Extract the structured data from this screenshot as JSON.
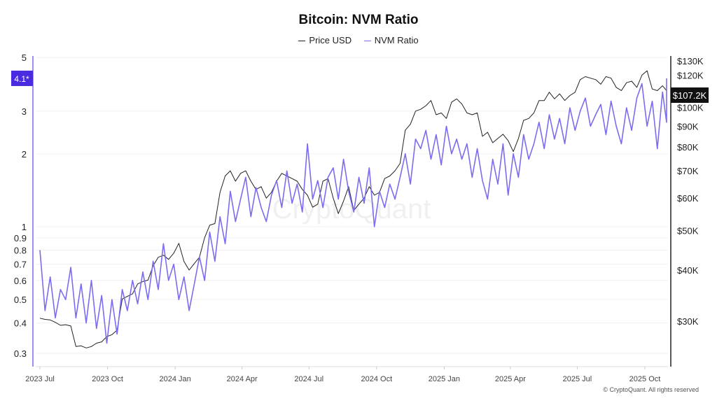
{
  "chart_data": {
    "type": "line",
    "title": "Bitcoin: NVM Ratio",
    "legend": [
      {
        "name": "Price USD",
        "color": "#222222"
      },
      {
        "name": "NVM Ratio",
        "color": "#7B6CF0"
      }
    ],
    "legend_position": "top-center",
    "x_start": "2023-07-01",
    "interval_days": 7,
    "x_ticks": [
      {
        "label": "2023 Jul",
        "date": "2023-07-01"
      },
      {
        "label": "2023 Oct",
        "date": "2023-10-01"
      },
      {
        "label": "2024 Jan",
        "date": "2024-01-01"
      },
      {
        "label": "2024 Apr",
        "date": "2024-04-01"
      },
      {
        "label": "2024 Jul",
        "date": "2024-07-01"
      },
      {
        "label": "2024 Oct",
        "date": "2024-10-01"
      },
      {
        "label": "2025 Jan",
        "date": "2025-01-01"
      },
      {
        "label": "2025 Apr",
        "date": "2025-04-01"
      },
      {
        "label": "2025 Jul",
        "date": "2025-07-01"
      },
      {
        "label": "2025 Oct",
        "date": "2025-10-01"
      }
    ],
    "left_axis": {
      "scale": "log",
      "range": [
        0.27,
        5
      ],
      "ticks": [
        {
          "v": 5,
          "label": "5"
        },
        {
          "v": 3,
          "label": "3"
        },
        {
          "v": 2,
          "label": "2"
        },
        {
          "v": 1,
          "label": "1"
        },
        {
          "v": 0.9,
          "label": "0.9"
        },
        {
          "v": 0.8,
          "label": "0.8"
        },
        {
          "v": 0.7,
          "label": "0.7"
        },
        {
          "v": 0.6,
          "label": "0.6"
        },
        {
          "v": 0.5,
          "label": "0.5"
        },
        {
          "v": 0.4,
          "label": "0.4"
        },
        {
          "v": 0.3,
          "label": "0.3"
        }
      ]
    },
    "right_axis": {
      "scale": "log",
      "range": [
        24000,
        130000
      ],
      "ticks": [
        {
          "v": 130000,
          "label": "$130K"
        },
        {
          "v": 120000,
          "label": "$120K"
        },
        {
          "v": 100000,
          "label": "$100K"
        },
        {
          "v": 90000,
          "label": "$90K"
        },
        {
          "v": 80000,
          "label": "$80K"
        },
        {
          "v": 70000,
          "label": "$70K"
        },
        {
          "v": 60000,
          "label": "$60K"
        },
        {
          "v": 50000,
          "label": "$50K"
        },
        {
          "v": 40000,
          "label": "$40K"
        },
        {
          "v": 30000,
          "label": "$30K"
        }
      ]
    },
    "last_ratio_label": "4.1*",
    "last_ratio_value": 4.1,
    "last_price_label": "$107.2K",
    "last_price_value": 107200,
    "series": [
      {
        "name": "Price USD",
        "axis": "right",
        "unit_multiplier": 1000,
        "values": [
          30.5,
          30.3,
          30.2,
          29.8,
          29.3,
          29.4,
          29.2,
          26.0,
          26.1,
          25.8,
          26.0,
          26.5,
          26.7,
          27.5,
          27.8,
          28.5,
          34.0,
          34.5,
          35.0,
          37.0,
          37.5,
          37.8,
          41.0,
          43.0,
          43.5,
          42.5,
          44.0,
          46.5,
          42.0,
          40.0,
          41.5,
          43.0,
          48.0,
          51.5,
          52.0,
          62.0,
          68.0,
          70.0,
          66.0,
          69.0,
          70.0,
          66.0,
          63.0,
          64.0,
          60.0,
          62.0,
          66.0,
          69.0,
          68.0,
          67.0,
          66.0,
          63.0,
          61.0,
          57.0,
          58.0,
          66.0,
          67.0,
          60.0,
          55.0,
          59.0,
          64.0,
          56.0,
          58.0,
          60.0,
          64.0,
          61.0,
          62.0,
          67.0,
          68.0,
          70.0,
          73.0,
          88.0,
          91.0,
          98.0,
          99.0,
          101.0,
          104.0,
          96.0,
          97.0,
          94.0,
          103.0,
          105.0,
          102.0,
          97.0,
          96.0,
          97.0,
          85.0,
          87.0,
          82.0,
          84.0,
          86.0,
          83.0,
          78.0,
          84.0,
          93.0,
          94.0,
          97.0,
          104.0,
          104.0,
          109.0,
          105.0,
          108.0,
          104.0,
          107.0,
          109.0,
          117.0,
          119.0,
          118.0,
          117.0,
          114.0,
          119.0,
          118.0,
          112.0,
          110.0,
          115.0,
          116.0,
          112.0,
          120.0,
          123.0,
          111.0,
          110.0,
          113.0,
          110.0,
          107.2
        ]
      },
      {
        "name": "NVM Ratio",
        "axis": "left",
        "values": [
          0.8,
          0.45,
          0.62,
          0.42,
          0.55,
          0.5,
          0.68,
          0.42,
          0.58,
          0.4,
          0.6,
          0.38,
          0.52,
          0.33,
          0.5,
          0.36,
          0.55,
          0.45,
          0.6,
          0.48,
          0.65,
          0.5,
          0.72,
          0.55,
          0.85,
          0.6,
          0.7,
          0.5,
          0.62,
          0.45,
          0.58,
          0.75,
          0.6,
          0.95,
          0.72,
          1.1,
          0.85,
          1.4,
          1.05,
          1.3,
          1.6,
          1.1,
          1.45,
          1.2,
          1.05,
          1.35,
          1.55,
          1.2,
          1.7,
          1.25,
          1.5,
          1.15,
          2.2,
          1.3,
          1.55,
          1.2,
          1.6,
          1.75,
          1.3,
          1.9,
          1.4,
          1.15,
          1.6,
          1.25,
          1.75,
          1.0,
          1.4,
          1.2,
          1.5,
          1.3,
          1.6,
          2.0,
          1.5,
          2.3,
          2.1,
          2.5,
          1.9,
          2.4,
          1.8,
          2.6,
          2.0,
          2.3,
          1.9,
          2.2,
          1.6,
          2.1,
          1.55,
          1.3,
          1.9,
          1.5,
          2.2,
          1.35,
          2.0,
          1.6,
          2.4,
          1.9,
          2.2,
          2.7,
          2.1,
          2.9,
          2.3,
          2.8,
          2.2,
          3.1,
          2.5,
          3.0,
          3.4,
          2.6,
          2.9,
          3.2,
          2.4,
          3.3,
          2.6,
          2.2,
          3.1,
          2.5,
          3.4,
          3.9,
          2.6,
          3.3,
          2.1,
          3.6,
          2.7,
          4.1
        ]
      }
    ],
    "watermark": "CryptoQuant",
    "footer": "© CryptoQuant. All rights reserved"
  }
}
